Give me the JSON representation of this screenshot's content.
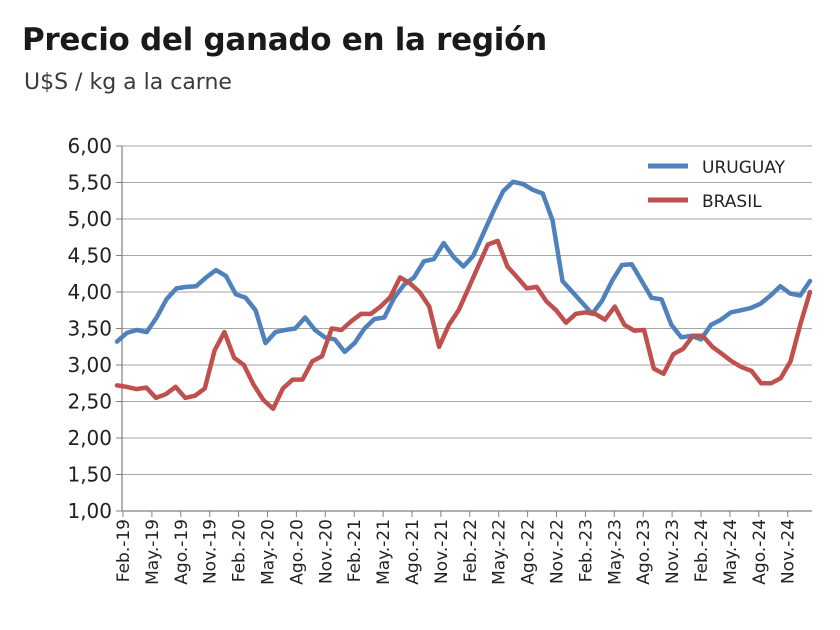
{
  "chart_data": {
    "type": "line",
    "title": "Precio del ganado en la región",
    "subtitle": "U$S / kg a la carne",
    "xlabel": "",
    "ylabel": "",
    "ylim": [
      1.0,
      6.0
    ],
    "y_ticks": [
      "1,00",
      "1,50",
      "2,00",
      "2,50",
      "3,00",
      "3,50",
      "4,00",
      "4,50",
      "5,00",
      "5,50",
      "6,00"
    ],
    "x_tick_labels": [
      "Feb.-19",
      "May.-19",
      "Ago.-19",
      "Nov.-19",
      "Feb.-20",
      "May.-20",
      "Ago.-20",
      "Nov.-20",
      "Feb.-21",
      "May.-21",
      "Ago.-21",
      "Nov.-21",
      "Feb.-22",
      "May.-22",
      "Ago.-22",
      "Nov.-22",
      "Feb.-23",
      "May.-23",
      "Ago.-23",
      "Nov.-23",
      "Feb.-24",
      "May.-24",
      "Ago.-24",
      "Nov.-24"
    ],
    "grid": true,
    "legend_position": "top-right",
    "series": [
      {
        "name": "URUGUAY",
        "color": "#4f81bd",
        "values": [
          3.32,
          3.44,
          3.48,
          3.45,
          3.65,
          3.9,
          4.05,
          4.07,
          4.08,
          4.2,
          4.3,
          4.22,
          3.97,
          3.92,
          3.75,
          3.3,
          3.45,
          3.48,
          3.5,
          3.65,
          3.48,
          3.38,
          3.35,
          3.18,
          3.3,
          3.5,
          3.63,
          3.65,
          3.92,
          4.1,
          4.2,
          4.42,
          4.45,
          4.67,
          4.48,
          4.35,
          4.5,
          4.8,
          5.1,
          5.38,
          5.51,
          5.48,
          5.4,
          5.35,
          4.98,
          4.15,
          4.0,
          3.85,
          3.7,
          3.88,
          4.15,
          4.37,
          4.38,
          4.15,
          3.92,
          3.9,
          3.55,
          3.38,
          3.4,
          3.35,
          3.55,
          3.62,
          3.72,
          3.75,
          3.78,
          3.84,
          3.95,
          4.08,
          3.98,
          3.95,
          4.15
        ]
      },
      {
        "name": "BRASIL",
        "color": "#c0504d",
        "values": [
          2.72,
          2.7,
          2.67,
          2.69,
          2.55,
          2.6,
          2.7,
          2.55,
          2.58,
          2.68,
          3.2,
          3.45,
          3.1,
          3.0,
          2.73,
          2.52,
          2.4,
          2.68,
          2.8,
          2.8,
          3.05,
          3.12,
          3.5,
          3.48,
          3.6,
          3.7,
          3.7,
          3.8,
          3.93,
          4.2,
          4.12,
          4.0,
          3.8,
          3.25,
          3.55,
          3.75,
          4.05,
          4.35,
          4.65,
          4.7,
          4.35,
          4.2,
          4.05,
          4.07,
          3.87,
          3.75,
          3.58,
          3.7,
          3.72,
          3.7,
          3.62,
          3.8,
          3.55,
          3.47,
          3.48,
          2.95,
          2.88,
          3.15,
          3.22,
          3.4,
          3.4,
          3.25,
          3.15,
          3.05,
          2.97,
          2.92,
          2.75,
          2.75,
          2.82,
          3.05,
          3.55,
          4.0
        ]
      }
    ]
  }
}
